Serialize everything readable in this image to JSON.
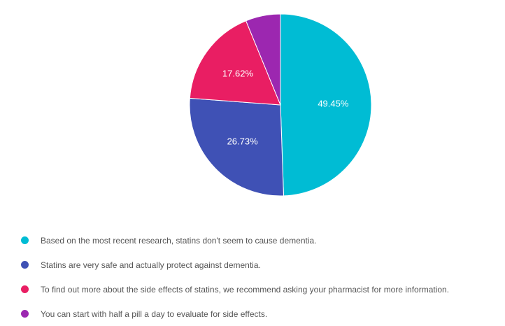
{
  "chart_data": {
    "type": "pie",
    "title": "",
    "categories": [
      "Based on the most recent research, statins don't seem to cause dementia.",
      "Statins are very safe and actually protect against dementia.",
      "To find out more about the side effects of statins, we recommend asking your pharmacist for more information.",
      "You can start with half a pill a day to evaluate for side effects."
    ],
    "values": [
      49.45,
      26.73,
      17.62,
      6.2
    ],
    "data_labels": [
      "49.45%",
      "26.73%",
      "17.62%",
      ""
    ],
    "colors": [
      "#00bcd4",
      "#3f51b5",
      "#e91e63",
      "#9c27b0"
    ],
    "legend_position": "bottom"
  }
}
